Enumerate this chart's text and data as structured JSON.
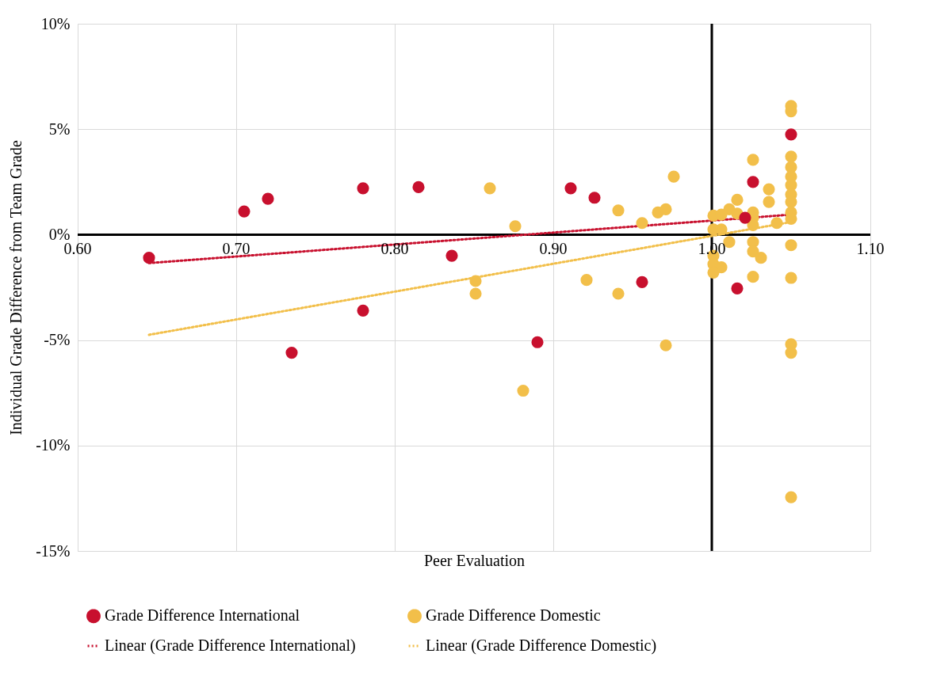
{
  "chart_data": {
    "type": "scatter",
    "xlabel": "Peer Evaluation",
    "ylabel": "Individual Grade Difference from Team Grade",
    "xlim": [
      0.6,
      1.1
    ],
    "xticks": [
      {
        "value": 0.6,
        "label": "0.60"
      },
      {
        "value": 0.7,
        "label": "0.70"
      },
      {
        "value": 0.8,
        "label": "0.80"
      },
      {
        "value": 0.9,
        "label": "0.90"
      },
      {
        "value": 1.0,
        "label": "1.00"
      },
      {
        "value": 1.1,
        "label": "1.10"
      }
    ],
    "ylim": [
      -15,
      10
    ],
    "yticks": [
      {
        "value": -15,
        "label": "-15%"
      },
      {
        "value": -10,
        "label": "-10%"
      },
      {
        "value": -5,
        "label": "-5%"
      },
      {
        "value": 0,
        "label": "0%"
      },
      {
        "value": 5,
        "label": "5%"
      },
      {
        "value": 10,
        "label": "10%"
      }
    ],
    "grid": true,
    "legend": "bottom",
    "ref_lines": [
      {
        "axis": "x",
        "value": 1.0,
        "color": "#000000"
      }
    ],
    "series": [
      {
        "name": "Grade Difference International",
        "type": "scatter",
        "marker": "circle",
        "color": "#c8102e",
        "x": [
          0.645,
          0.705,
          0.72,
          0.735,
          0.78,
          0.78,
          0.815,
          0.836,
          0.89,
          0.911,
          0.926,
          0.956,
          1.016,
          1.05,
          1.026,
          1.021
        ],
        "values": [
          -1.1,
          1.1,
          1.7,
          -5.6,
          2.2,
          -3.6,
          2.25,
          -1.0,
          -5.1,
          2.2,
          1.75,
          -2.25,
          -2.55,
          4.75,
          2.5,
          0.8
        ]
      },
      {
        "name": "Grade Difference Domestic",
        "type": "scatter",
        "marker": "circle",
        "color": "#f2bf4a",
        "x": [
          0.86,
          0.876,
          0.851,
          0.851,
          0.881,
          0.921,
          0.941,
          0.941,
          1.05,
          1.05,
          1.05,
          1.05,
          1.05,
          1.05,
          1.05,
          1.05,
          1.05,
          1.05,
          1.05,
          1.026,
          0.976,
          0.966,
          0.971,
          0.956,
          1.036,
          1.036,
          1.041,
          1.016,
          1.011,
          1.016,
          1.001,
          1.006,
          1.026,
          1.026,
          1.026,
          1.001,
          1.006,
          1.011,
          1.026,
          1.026,
          1.031,
          1.001,
          1.001,
          1.006,
          1.001,
          1.026,
          1.05,
          0.971,
          1.05,
          1.05,
          1.05
        ],
        "values": [
          2.2,
          0.4,
          -2.2,
          -2.8,
          -7.4,
          -2.15,
          -2.8,
          1.15,
          6.1,
          5.85,
          3.7,
          3.2,
          2.75,
          2.35,
          1.9,
          1.55,
          1.05,
          0.75,
          -0.5,
          3.55,
          2.75,
          1.05,
          1.2,
          0.55,
          2.15,
          1.55,
          0.55,
          1.65,
          1.2,
          1.0,
          0.9,
          0.95,
          1.05,
          0.8,
          0.45,
          0.25,
          0.25,
          -0.35,
          -0.35,
          -0.8,
          -1.1,
          -1.0,
          -1.4,
          -1.55,
          -1.8,
          -2.0,
          -2.05,
          -5.25,
          -5.2,
          -5.6,
          -12.45
        ]
      },
      {
        "name": "Linear (Grade Difference International)",
        "type": "line",
        "line_style": "dotted",
        "color": "#c8102e",
        "x": [
          0.645,
          1.05
        ],
        "values": [
          -1.35,
          0.95
        ]
      },
      {
        "name": "Linear (Grade Difference Domestic)",
        "type": "line",
        "line_style": "dotted",
        "color": "#f2bf4a",
        "x": [
          0.645,
          1.05
        ],
        "values": [
          -4.75,
          0.6
        ]
      }
    ]
  }
}
